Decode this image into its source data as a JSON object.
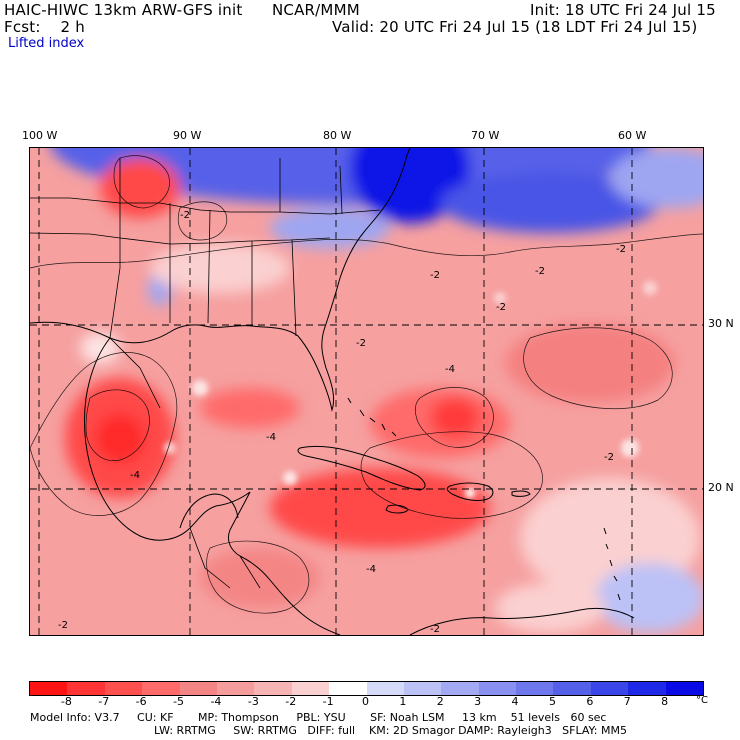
{
  "header": {
    "model_title": "HAIC-HIWC 13km ARW-GFS init",
    "center": "NCAR/MMM",
    "init": "Init: 18 UTC Fri 24 Jul 15",
    "fcst": "Fcst:    2 h",
    "valid": "Valid: 20 UTC Fri 24 Jul 15 (18 LDT Fri 24 Jul 15)",
    "field": "Lifted index"
  },
  "map": {
    "lon_labels": [
      "100 W",
      "90 W",
      "80 W",
      "70 W",
      "60 W"
    ],
    "lat_labels": [
      "30 N",
      "20 N"
    ],
    "contour_labels": [
      "-2",
      "-2",
      "-2",
      "-2",
      "-2",
      "-2",
      "-2",
      "-4",
      "-4",
      "-4",
      "-4",
      "-2",
      "-2"
    ],
    "palette": {
      "deep_red": "#ff1414",
      "red": "#ff5a5a",
      "mid_red": "#f48b8b",
      "light_red": "#f8b4b4",
      "pale": "#fde4e4",
      "light_blue": "#9ea6f2",
      "blue": "#4a55e6",
      "deep_blue": "#0a14e6"
    }
  },
  "colorbar": {
    "colors": [
      "#ff1414",
      "#ff3434",
      "#ff5050",
      "#ff6b6b",
      "#f48585",
      "#f59c9c",
      "#f7b4b4",
      "#fbd0d0",
      "#ffffff",
      "#d6daf9",
      "#bcc1f6",
      "#a3a9f3",
      "#8990f0",
      "#6f77ec",
      "#5560e9",
      "#3a46e8",
      "#1e28e7",
      "#0a0ae6"
    ],
    "ticks": [
      "-8",
      "-7",
      "-6",
      "-5",
      "-4",
      "-3",
      "-2",
      "-1",
      "0",
      "1",
      "2",
      "3",
      "4",
      "5",
      "6",
      "7",
      "8"
    ],
    "unit": "°C"
  },
  "model_info": {
    "line1": "Model Info: V3.7     CU: KF       MP: Thompson     PBL: YSU       SF: Noah LSM     13 km    51 levels   60 sec",
    "line2": "LW: RRTMG     SW: RRTMG   DIFF: full    KM: 2D Smagor DAMP: Rayleigh3   SFLAY: MM5"
  }
}
